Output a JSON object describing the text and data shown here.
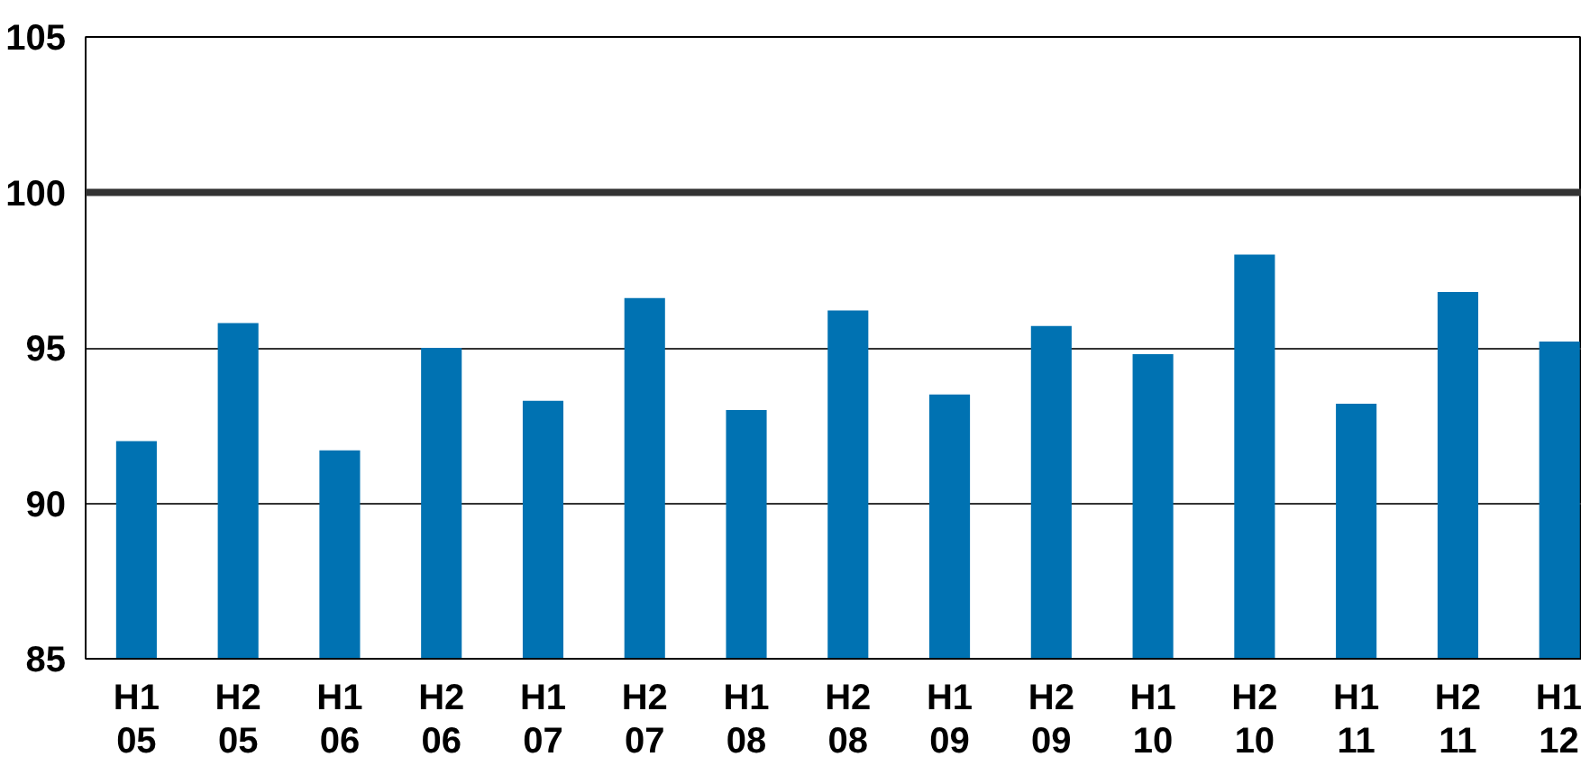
{
  "chart_data": {
    "type": "bar",
    "categories": [
      "H1\n05",
      "H2\n05",
      "H1\n06",
      "H2\n06",
      "H1\n07",
      "H2\n07",
      "H1\n08",
      "H2\n08",
      "H1\n09",
      "H2\n09",
      "H1\n10",
      "H2\n10",
      "H1\n11",
      "H2\n11",
      "H1\n12"
    ],
    "values": [
      92.0,
      95.8,
      91.7,
      95.0,
      93.3,
      96.6,
      93.0,
      96.2,
      93.5,
      95.7,
      94.8,
      98.0,
      93.2,
      96.8,
      95.2
    ],
    "color": "#0072b2",
    "ylim": [
      85,
      105
    ],
    "yticks": [
      85,
      90,
      95,
      100,
      105
    ],
    "grid": "y",
    "ref_lines": [
      {
        "axis": "y",
        "value": 100,
        "color": "#333333"
      }
    ]
  }
}
